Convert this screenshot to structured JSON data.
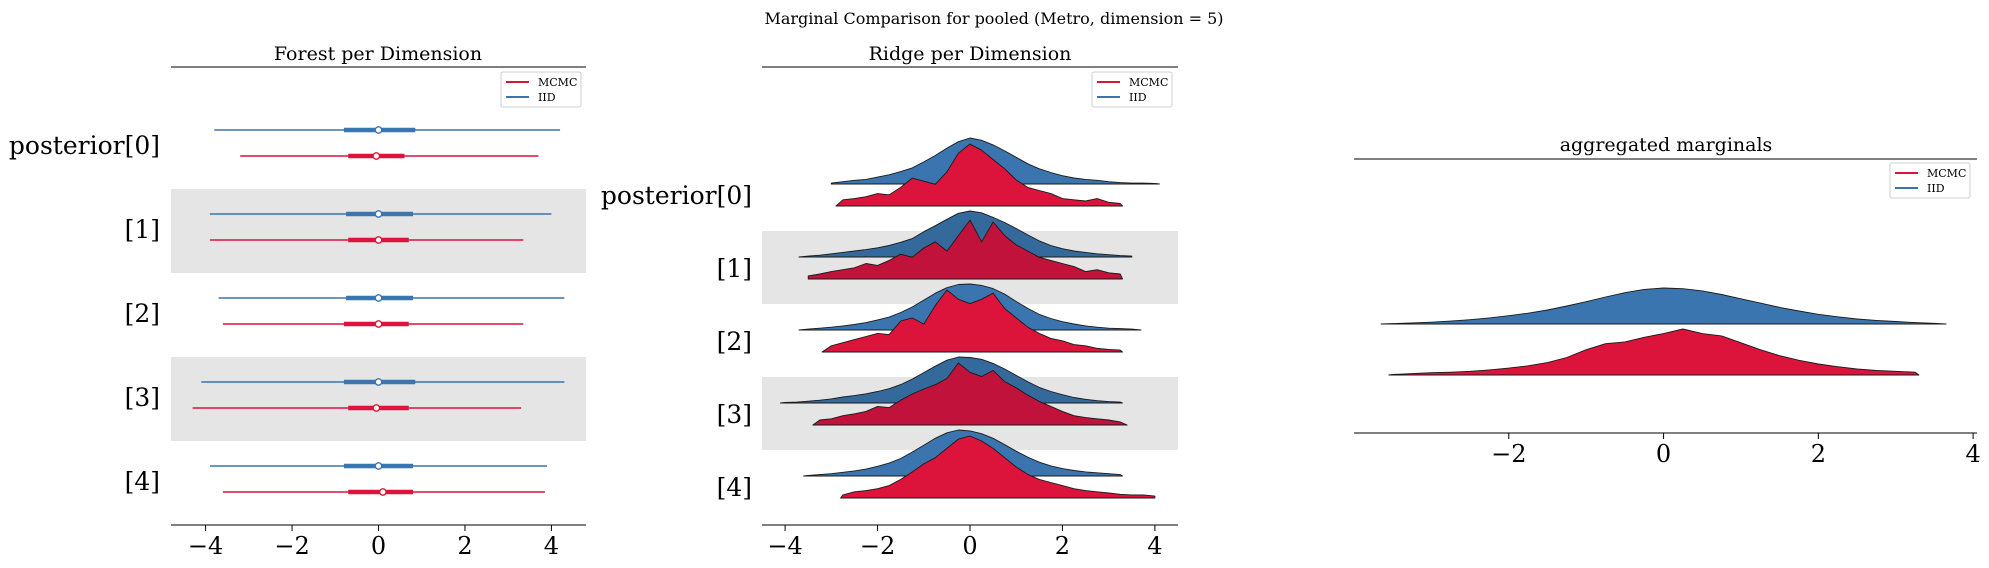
{
  "figure": {
    "suptitle": "Marginal Comparison for pooled (Metro, dimension = 5)"
  },
  "colors": {
    "mcmc": "#dc143c",
    "iid": "#3b75af",
    "band": "#e5e5e5",
    "mcmc_dark": "#c0123a",
    "iid_dark": "#34699c"
  },
  "chart_data": [
    {
      "type": "forest",
      "title": "Forest per Dimension",
      "labels": [
        "posterior[0]",
        "[1]",
        "[2]",
        "[3]",
        "[4]"
      ],
      "legend": {
        "placement": "top-right",
        "entries": [
          "MCMC",
          "IID"
        ]
      },
      "xticks": [
        -4,
        -2,
        0,
        2,
        4
      ],
      "xlim": [
        -4.8,
        4.8
      ],
      "shaded_rows": [
        1,
        3
      ],
      "series": [
        {
          "name": "IID",
          "rows": [
            {
              "low": -3.8,
              "q1": -0.8,
              "median": 0.0,
              "q3": 0.85,
              "high": 4.2
            },
            {
              "low": -3.9,
              "q1": -0.75,
              "median": 0.0,
              "q3": 0.8,
              "high": 4.0
            },
            {
              "low": -3.7,
              "q1": -0.75,
              "median": 0.0,
              "q3": 0.8,
              "high": 4.3
            },
            {
              "low": -4.1,
              "q1": -0.8,
              "median": 0.0,
              "q3": 0.85,
              "high": 4.3
            },
            {
              "low": -3.9,
              "q1": -0.8,
              "median": 0.0,
              "q3": 0.8,
              "high": 3.9
            }
          ]
        },
        {
          "name": "MCMC",
          "rows": [
            {
              "low": -3.2,
              "q1": -0.7,
              "median": -0.05,
              "q3": 0.6,
              "high": 3.7
            },
            {
              "low": -3.9,
              "q1": -0.7,
              "median": 0.0,
              "q3": 0.7,
              "high": 3.35
            },
            {
              "low": -3.6,
              "q1": -0.8,
              "median": 0.0,
              "q3": 0.7,
              "high": 3.35
            },
            {
              "low": -4.3,
              "q1": -0.7,
              "median": -0.05,
              "q3": 0.7,
              "high": 3.3
            },
            {
              "low": -3.6,
              "q1": -0.7,
              "median": 0.1,
              "q3": 0.8,
              "high": 3.85
            }
          ]
        }
      ]
    },
    {
      "type": "ridge",
      "title": "Ridge per Dimension",
      "labels": [
        "posterior[0]",
        "[1]",
        "[2]",
        "[3]",
        "[4]"
      ],
      "legend": {
        "placement": "top-right",
        "entries": [
          "MCMC",
          "IID"
        ]
      },
      "xticks": [
        -4,
        -2,
        0,
        2,
        4
      ],
      "xlim": [
        -4.5,
        4.5
      ],
      "shaded_rows": [
        1,
        3
      ],
      "x_grid": [
        -4.25,
        -4.0,
        -3.75,
        -3.5,
        -3.25,
        -3.0,
        -2.75,
        -2.5,
        -2.25,
        -2.0,
        -1.75,
        -1.5,
        -1.25,
        -1.0,
        -0.75,
        -0.5,
        -0.25,
        0.0,
        0.25,
        0.5,
        0.75,
        1.0,
        1.25,
        1.5,
        1.75,
        2.0,
        2.25,
        2.5,
        2.75,
        3.0,
        3.25,
        3.5,
        3.75,
        4.0,
        4.25
      ],
      "series": [
        {
          "name": "IID",
          "rows": [
            {
              "xmin": -3.0,
              "xmax": 4.1,
              "density": [
                0,
                0,
                0,
                0,
                0,
                0.02,
                0.05,
                0.08,
                0.1,
                0.15,
                0.2,
                0.27,
                0.35,
                0.48,
                0.62,
                0.78,
                0.92,
                1.0,
                0.95,
                0.85,
                0.72,
                0.58,
                0.44,
                0.33,
                0.25,
                0.18,
                0.13,
                0.1,
                0.08,
                0.05,
                0.03,
                0.02,
                0.02,
                0.01,
                0
              ]
            },
            {
              "xmin": -3.7,
              "xmax": 3.5,
              "density": [
                0,
                0,
                0.01,
                0.02,
                0.04,
                0.07,
                0.1,
                0.13,
                0.16,
                0.2,
                0.25,
                0.32,
                0.4,
                0.55,
                0.68,
                0.82,
                0.95,
                1.0,
                0.96,
                0.86,
                0.75,
                0.62,
                0.48,
                0.35,
                0.25,
                0.18,
                0.13,
                0.1,
                0.07,
                0.05,
                0.03,
                0.02,
                0.01,
                0,
                0
              ]
            },
            {
              "xmin": -3.7,
              "xmax": 3.7,
              "density": [
                0,
                0,
                0.01,
                0.02,
                0.04,
                0.06,
                0.09,
                0.12,
                0.16,
                0.22,
                0.28,
                0.38,
                0.5,
                0.65,
                0.8,
                0.92,
                0.99,
                1.0,
                0.97,
                0.9,
                0.78,
                0.62,
                0.47,
                0.34,
                0.25,
                0.18,
                0.13,
                0.09,
                0.06,
                0.04,
                0.03,
                0.02,
                0.01,
                0,
                0
              ]
            },
            {
              "xmin": -4.1,
              "xmax": 3.3,
              "density": [
                0,
                0.01,
                0.02,
                0.04,
                0.06,
                0.09,
                0.13,
                0.16,
                0.2,
                0.25,
                0.31,
                0.4,
                0.52,
                0.66,
                0.8,
                0.93,
                1.0,
                0.99,
                0.95,
                0.86,
                0.74,
                0.6,
                0.46,
                0.34,
                0.25,
                0.18,
                0.12,
                0.08,
                0.05,
                0.03,
                0.02,
                0.01,
                0,
                0,
                0
              ]
            },
            {
              "xmin": -3.6,
              "xmax": 3.3,
              "density": [
                0,
                0,
                0,
                0.01,
                0.03,
                0.05,
                0.08,
                0.11,
                0.15,
                0.21,
                0.28,
                0.38,
                0.52,
                0.67,
                0.82,
                0.94,
                1.0,
                0.98,
                0.92,
                0.82,
                0.68,
                0.54,
                0.41,
                0.3,
                0.22,
                0.16,
                0.12,
                0.09,
                0.07,
                0.05,
                0.03,
                0.02,
                0,
                0,
                0
              ]
            }
          ]
        },
        {
          "name": "MCMC",
          "rows": [
            {
              "xmin": -2.9,
              "xmax": 3.3,
              "density": [
                0,
                0,
                0,
                0,
                0,
                0.05,
                0.1,
                0.12,
                0.15,
                0.2,
                0.18,
                0.3,
                0.45,
                0.4,
                0.35,
                0.55,
                0.85,
                1.0,
                0.9,
                0.75,
                0.6,
                0.42,
                0.3,
                0.25,
                0.2,
                0.12,
                0.1,
                0.08,
                0.12,
                0.06,
                0.04,
                0,
                0,
                0,
                0
              ]
            },
            {
              "xmin": -3.5,
              "xmax": 3.3,
              "density": [
                0,
                0,
                0,
                0.05,
                0.08,
                0.12,
                0.15,
                0.18,
                0.25,
                0.22,
                0.3,
                0.4,
                0.35,
                0.5,
                0.6,
                0.45,
                0.7,
                0.95,
                0.6,
                0.92,
                0.7,
                0.55,
                0.45,
                0.35,
                0.3,
                0.25,
                0.2,
                0.12,
                0.15,
                0.1,
                0.08,
                0,
                0,
                0,
                0
              ]
            },
            {
              "xmin": -3.2,
              "xmax": 3.3,
              "density": [
                0,
                0,
                0,
                0,
                0.05,
                0.1,
                0.15,
                0.2,
                0.25,
                0.3,
                0.28,
                0.5,
                0.55,
                0.45,
                0.75,
                1.0,
                0.85,
                0.78,
                0.85,
                0.95,
                0.7,
                0.55,
                0.4,
                0.3,
                0.22,
                0.18,
                0.12,
                0.1,
                0.06,
                0.04,
                0.03,
                0,
                0,
                0,
                0
              ]
            },
            {
              "xmin": -3.4,
              "xmax": 3.4,
              "density": [
                0,
                0,
                0,
                0.05,
                0.08,
                0.1,
                0.15,
                0.18,
                0.22,
                0.3,
                0.28,
                0.4,
                0.5,
                0.58,
                0.65,
                0.75,
                1.0,
                0.85,
                0.78,
                0.88,
                0.7,
                0.6,
                0.48,
                0.38,
                0.3,
                0.22,
                0.15,
                0.12,
                0.1,
                0.08,
                0.05,
                0,
                0,
                0,
                0
              ]
            },
            {
              "xmin": -2.8,
              "xmax": 4.0,
              "density": [
                0,
                0,
                0,
                0,
                0,
                0,
                0.05,
                0.1,
                0.12,
                0.15,
                0.2,
                0.3,
                0.42,
                0.55,
                0.65,
                0.8,
                0.95,
                1.0,
                0.92,
                0.8,
                0.65,
                0.5,
                0.38,
                0.3,
                0.25,
                0.2,
                0.15,
                0.12,
                0.1,
                0.08,
                0.06,
                0.05,
                0.05,
                0.03,
                0
              ]
            }
          ]
        }
      ]
    },
    {
      "type": "ridge",
      "title": "aggregated marginals",
      "legend": {
        "placement": "top-right",
        "entries": [
          "MCMC",
          "IID"
        ]
      },
      "xticks": [
        -2,
        0,
        2,
        4
      ],
      "xlim": [
        -4.0,
        4.05
      ],
      "x_grid": [
        -3.75,
        -3.5,
        -3.25,
        -3.0,
        -2.75,
        -2.5,
        -2.25,
        -2.0,
        -1.75,
        -1.5,
        -1.25,
        -1.0,
        -0.75,
        -0.5,
        -0.25,
        0.0,
        0.25,
        0.5,
        0.75,
        1.0,
        1.25,
        1.5,
        1.75,
        2.0,
        2.25,
        2.5,
        2.75,
        3.0,
        3.25,
        3.5,
        3.75
      ],
      "series": [
        {
          "name": "IID",
          "xmin": -3.65,
          "xmax": 3.65,
          "density": [
            0,
            0.01,
            0.03,
            0.05,
            0.08,
            0.12,
            0.17,
            0.23,
            0.3,
            0.39,
            0.5,
            0.62,
            0.75,
            0.87,
            0.96,
            1.0,
            0.98,
            0.92,
            0.82,
            0.7,
            0.58,
            0.46,
            0.36,
            0.27,
            0.2,
            0.14,
            0.1,
            0.07,
            0.04,
            0.02,
            0.01
          ]
        },
        {
          "name": "MCMC",
          "xmin": -3.55,
          "xmax": 3.3,
          "density": [
            0,
            0.01,
            0.03,
            0.05,
            0.06,
            0.08,
            0.11,
            0.15,
            0.2,
            0.27,
            0.38,
            0.55,
            0.68,
            0.72,
            0.82,
            0.9,
            1.0,
            0.9,
            0.85,
            0.7,
            0.55,
            0.42,
            0.32,
            0.24,
            0.18,
            0.13,
            0.1,
            0.08,
            0.06,
            0.03,
            0.01
          ]
        }
      ]
    }
  ]
}
